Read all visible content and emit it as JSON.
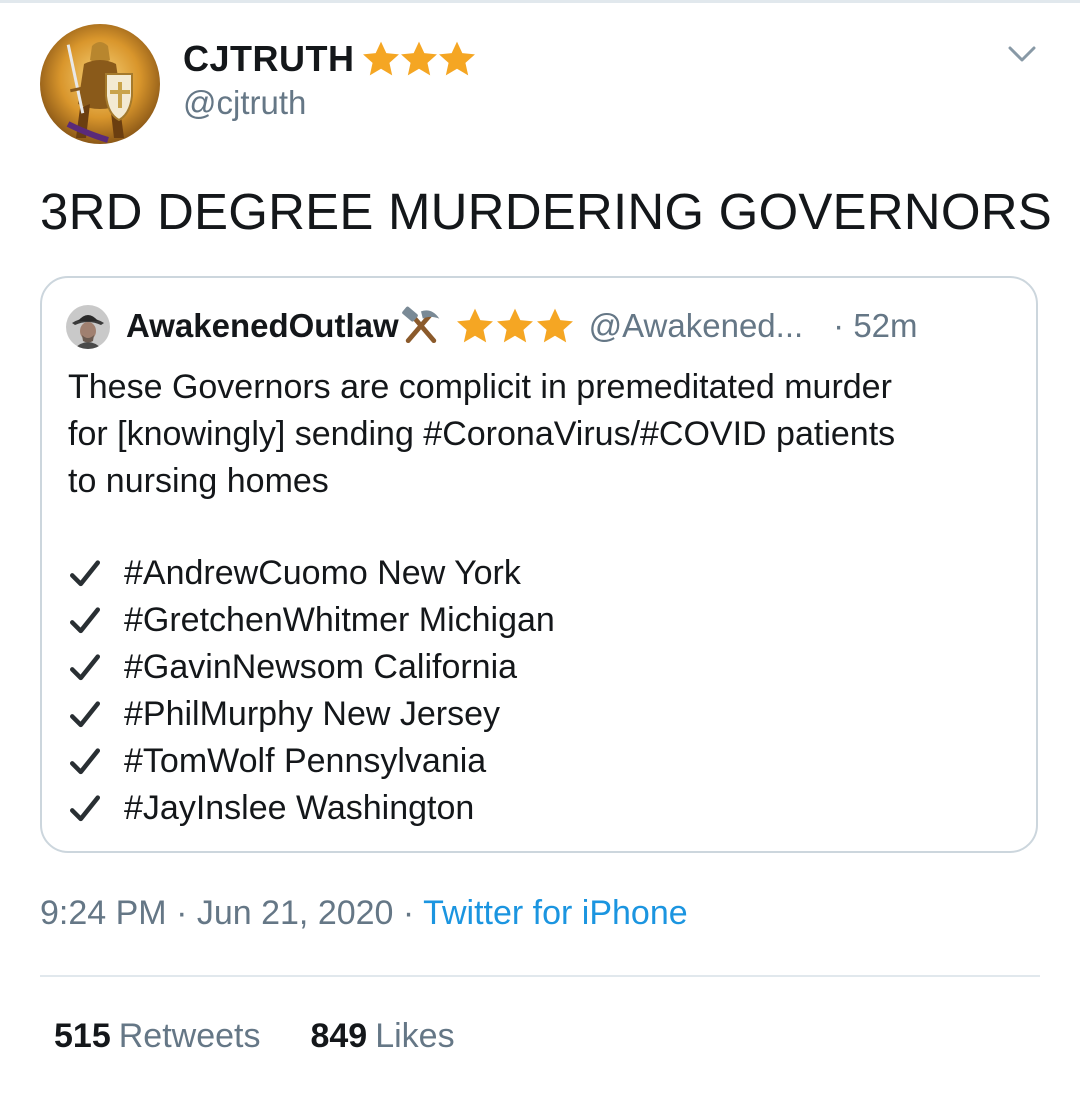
{
  "author": {
    "display_name": "CJTRUTH",
    "handle": "@cjtruth",
    "badge_icons": [
      "star-icon",
      "star-icon",
      "star-icon"
    ]
  },
  "tweet": {
    "text": "3RD DEGREE MURDERING GOVERNORS"
  },
  "quoted_tweet": {
    "display_name": "AwakenedOutlaw",
    "handle": "@Awakened...",
    "time": "· 52m",
    "badge_icons": [
      "hammer-pick-icon",
      "star-icon",
      "star-icon",
      "star-icon"
    ],
    "body_lines": [
      "These Governors are complicit in premeditated murder",
      "for [knowingly] sending #CoronaVirus/#COVID patients",
      "to nursing homes"
    ],
    "checklist": [
      "#AndrewCuomo New York",
      "#GretchenWhitmer Michigan",
      "#GavinNewsom California",
      "#PhilMurphy New Jersey",
      "#TomWolf Pennsylvania",
      "#JayInslee Washington"
    ]
  },
  "meta": {
    "time": "9:24 PM",
    "separator1": " · ",
    "date": "Jun 21, 2020",
    "separator2": " · ",
    "source": "Twitter for iPhone"
  },
  "stats": {
    "retweets_count": "515",
    "retweets_label": "Retweets",
    "likes_count": "849",
    "likes_label": "Likes"
  },
  "colors": {
    "star": "#f5a623",
    "link": "#1b95e0",
    "secondary_text": "#657786",
    "border": "#ccd6dd"
  }
}
